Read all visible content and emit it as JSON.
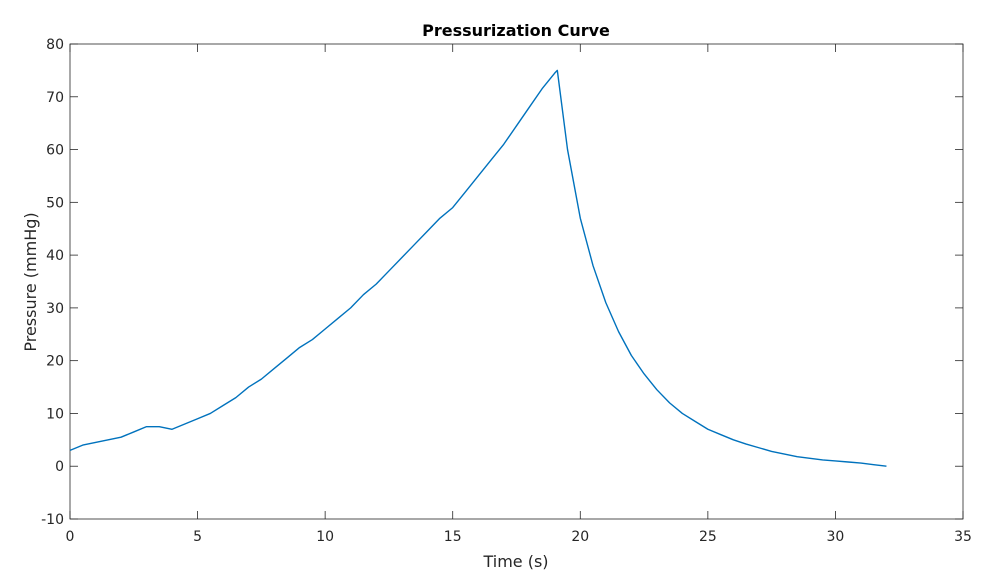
{
  "chart_data": {
    "type": "line",
    "title": "Pressurization Curve",
    "xlabel": "Time (s)",
    "ylabel": "Pressure (mmHg)",
    "xlim": [
      0,
      35
    ],
    "ylim": [
      -10,
      80
    ],
    "xticks": [
      0,
      5,
      10,
      15,
      20,
      25,
      30,
      35
    ],
    "yticks": [
      -10,
      0,
      10,
      20,
      30,
      40,
      50,
      60,
      70,
      80
    ],
    "grid": false,
    "box": true,
    "series": [
      {
        "color": "#0072bd",
        "x": [
          0,
          0.5,
          1,
          1.5,
          2,
          2.5,
          3,
          3.5,
          4,
          4.5,
          5,
          5.5,
          6,
          6.5,
          7,
          7.5,
          8,
          8.5,
          9,
          9.5,
          10,
          10.5,
          11,
          11.5,
          12,
          12.5,
          13,
          13.5,
          14,
          14.5,
          15,
          15.5,
          16,
          16.5,
          17,
          17.5,
          18,
          18.5,
          19,
          19.1,
          19.5,
          20,
          20.5,
          21,
          21.5,
          22,
          22.5,
          23,
          23.5,
          24,
          24.5,
          25,
          25.5,
          26,
          26.5,
          27,
          27.5,
          28,
          28.5,
          29,
          29.5,
          30,
          30.5,
          31,
          31.5,
          32
        ],
        "y": [
          3,
          4,
          4.5,
          5,
          5.5,
          6.5,
          7.5,
          7.5,
          7,
          8,
          9,
          10,
          11.5,
          13,
          15,
          16.5,
          18.5,
          20.5,
          22.5,
          24,
          26,
          28,
          30,
          32.5,
          34.5,
          37,
          39.5,
          42,
          44.5,
          47,
          49,
          52,
          55,
          58,
          61,
          64.5,
          68,
          71.5,
          74.5,
          75,
          60,
          47,
          38,
          31,
          25.5,
          21,
          17.5,
          14.5,
          12,
          10,
          8.5,
          7,
          6,
          5,
          4.2,
          3.5,
          2.8,
          2.3,
          1.8,
          1.5,
          1.2,
          1,
          0.8,
          0.6,
          0.3,
          0
        ]
      }
    ]
  }
}
